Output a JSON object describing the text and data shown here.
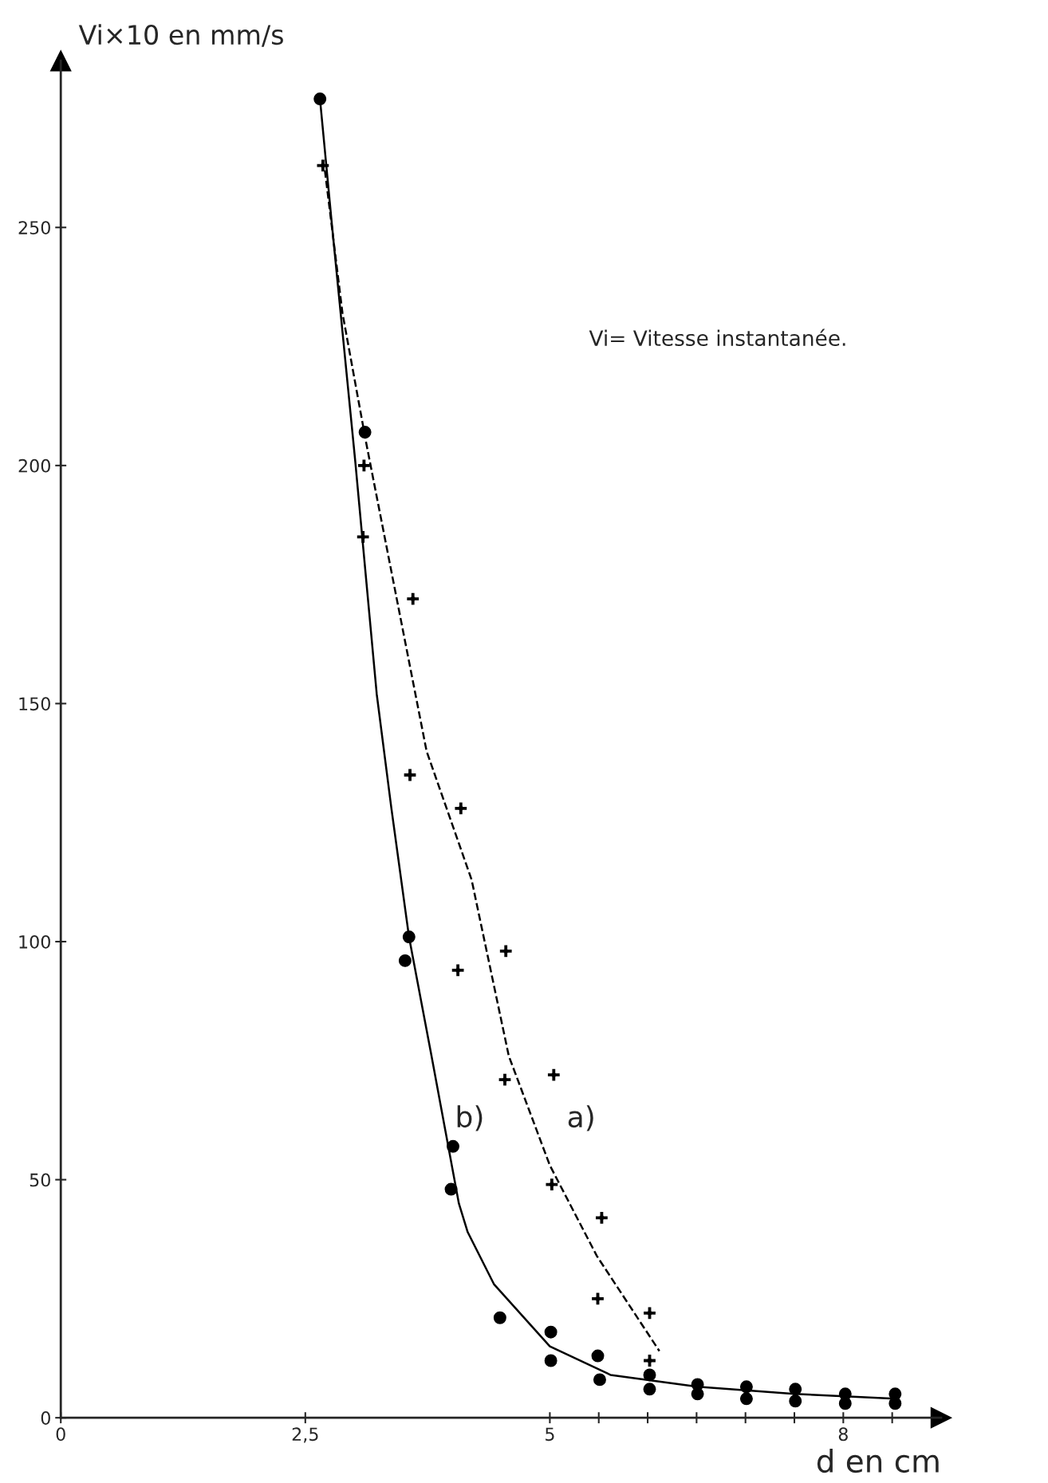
{
  "chart_data": {
    "type": "scatter",
    "xlabel": "d en cm",
    "ylabel": "Vi×10 en mm/s",
    "annotations": [
      "Vi= Vitesse instantanée."
    ],
    "xlim": [
      0,
      9
    ],
    "ylim": [
      0,
      285
    ],
    "xticks": [
      0,
      {
        "value": 2.5,
        "label": "2,5"
      },
      5,
      {
        "value": 5.5,
        "label": null
      },
      {
        "value": 6,
        "label": null
      },
      {
        "value": 6.5,
        "label": null
      },
      {
        "value": 7,
        "label": null
      },
      {
        "value": 7.5,
        "label": null
      },
      8,
      {
        "value": 8.5,
        "label": null
      }
    ],
    "yticks": [
      0,
      50,
      100,
      150,
      200,
      250
    ],
    "grid": false,
    "legend": false,
    "series": [
      {
        "marker": "cross",
        "color": "#000000",
        "x": [
          2.68,
          3.1,
          3.09,
          3.6,
          3.57,
          4.09,
          4.06,
          4.55,
          4.54,
          5.04,
          5.02,
          5.53,
          5.49,
          6.02,
          6.02
        ],
        "values": [
          263,
          200,
          185,
          172,
          135,
          128,
          94,
          98,
          71,
          72,
          49,
          42,
          25,
          22,
          12
        ]
      },
      {
        "marker": "circle",
        "color": "#000000",
        "x": [
          2.65,
          3.11,
          3.56,
          3.52,
          4.01,
          3.99,
          4.49,
          5.01,
          5.01,
          5.49,
          5.51,
          6.02,
          6.02,
          6.51,
          6.51,
          7.01,
          7.01,
          7.51,
          7.51,
          8.02,
          8.02,
          8.53,
          8.53
        ],
        "values": [
          277,
          207,
          101,
          96,
          57,
          48,
          21,
          18,
          12,
          13,
          8,
          9,
          6,
          7,
          5,
          6.5,
          4,
          6,
          3.5,
          5,
          3,
          5,
          3
        ]
      },
      {
        "type": "line",
        "name": "a)",
        "line_style": "dashed",
        "color": "#000000",
        "x": [
          2.7,
          2.88,
          3.12,
          3.74,
          4.2,
          4.58,
          5.0,
          5.48,
          6.12
        ],
        "values": [
          262,
          232,
          205,
          140,
          113,
          76,
          53,
          34,
          14
        ]
      },
      {
        "type": "line",
        "name": "b)",
        "line_style": "solid",
        "color": "#000000",
        "x": [
          2.65,
          2.77,
          3.01,
          3.23,
          3.38,
          3.56,
          3.79,
          4.07,
          4.16,
          4.43,
          5.0,
          5.62,
          6.51,
          7.5,
          8.53
        ],
        "values": [
          277,
          251,
          201,
          152,
          128,
          101,
          76,
          45,
          39,
          28,
          15,
          9,
          6.5,
          5,
          4
        ]
      }
    ]
  }
}
